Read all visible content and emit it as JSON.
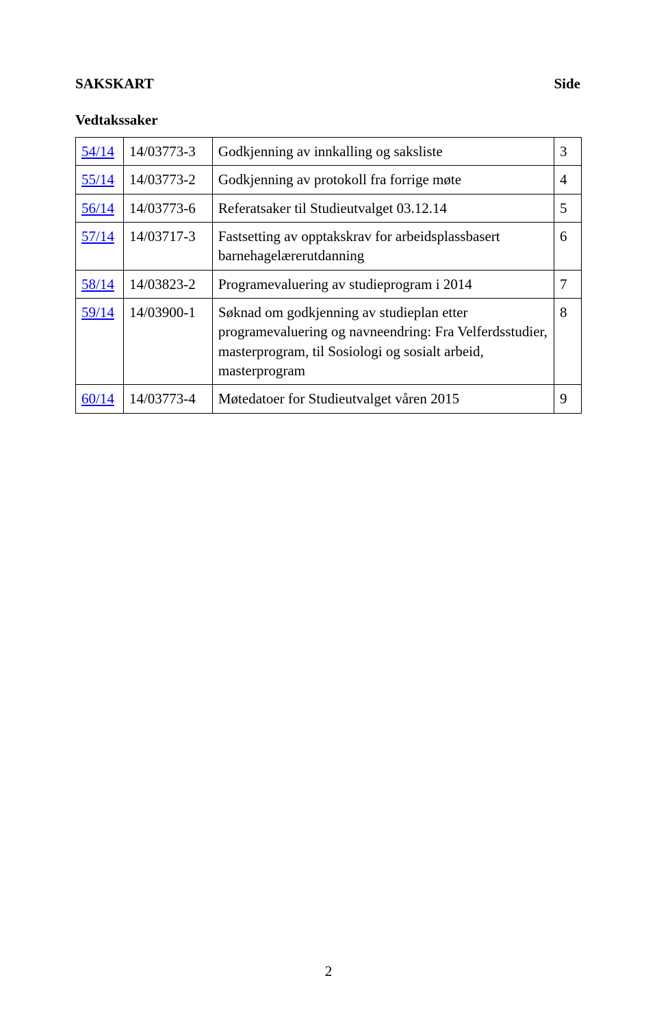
{
  "header": {
    "title": "SAKSKART",
    "side_label": "Side"
  },
  "section_title": "Vedtakssaker",
  "rows": [
    {
      "ref": "54/14",
      "code": "14/03773-3",
      "desc": "Godkjenning av innkalling og saksliste",
      "num": "3"
    },
    {
      "ref": "55/14",
      "code": "14/03773-2",
      "desc": "Godkjenning av protokoll fra forrige møte",
      "num": "4"
    },
    {
      "ref": "56/14",
      "code": "14/03773-6",
      "desc": "Referatsaker til Studieutvalget 03.12.14",
      "num": "5"
    },
    {
      "ref": "57/14",
      "code": "14/03717-3",
      "desc": "Fastsetting av opptakskrav for arbeidsplassbasert barnehagelærerutdanning",
      "num": "6"
    },
    {
      "ref": "58/14",
      "code": "14/03823-2",
      "desc": "Programevaluering av studieprogram i 2014",
      "num": "7"
    },
    {
      "ref": "59/14",
      "code": "14/03900-1",
      "desc": "Søknad om godkjenning av studieplan etter programevaluering og navneendring: Fra Velferdsstudier, masterprogram, til Sosiologi og sosialt arbeid, masterprogram",
      "num": "8"
    },
    {
      "ref": "60/14",
      "code": "14/03773-4",
      "desc": "Møtedatoer for Studieutvalget våren 2015",
      "num": "9"
    }
  ],
  "page_number": "2"
}
